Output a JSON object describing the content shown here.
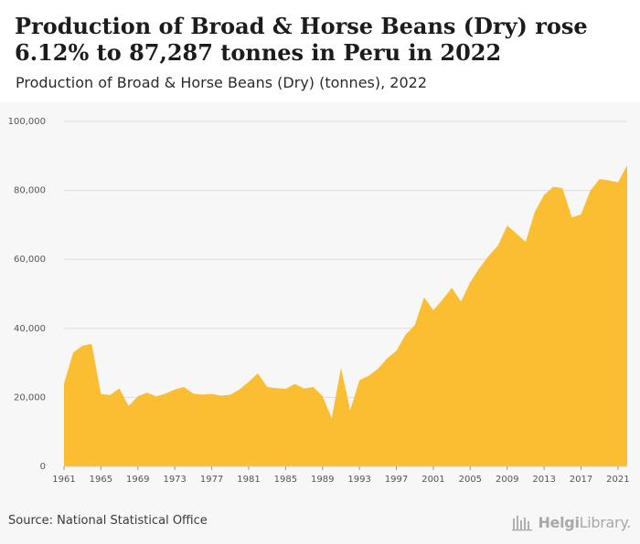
{
  "header": {
    "title": "Production of Broad & Horse Beans (Dry) rose 6.12% to 87,287 tonnes in Peru in 2022",
    "subtitle": "Production of Broad & Horse Beans (Dry) (tonnes), 2022"
  },
  "footer": {
    "source": "Source: National Statistical Office",
    "logo_text_a": "Helgi",
    "logo_text_b": "Library."
  },
  "colors": {
    "area_fill": "#fbbd31",
    "gridline": "#dddddd",
    "panel_bg": "#f7f7f7"
  },
  "chart_data": {
    "type": "area",
    "title": "Production of Broad & Horse Beans (Dry) (tonnes), 2022",
    "xlabel": "",
    "ylabel": "",
    "ylim": [
      0,
      100000
    ],
    "yticks": [
      0,
      20000,
      40000,
      60000,
      80000,
      100000
    ],
    "ytick_labels": [
      "0",
      "20,000",
      "40,000",
      "60,000",
      "80,000",
      "100,000"
    ],
    "xticks": [
      1961,
      1965,
      1969,
      1973,
      1977,
      1981,
      1985,
      1989,
      1993,
      1997,
      2001,
      2005,
      2009,
      2013,
      2017,
      2021
    ],
    "grid": true,
    "series": [
      {
        "x": [
          1961,
          1962,
          1963,
          1964,
          1965,
          1966,
          1967,
          1968,
          1969,
          1970,
          1971,
          1972,
          1973,
          1974,
          1975,
          1976,
          1977,
          1978,
          1979,
          1980,
          1981,
          1982,
          1983,
          1984,
          1985,
          1986,
          1987,
          1988,
          1989,
          1990,
          1991,
          1992,
          1993,
          1994,
          1995,
          1996,
          1997,
          1998,
          1999,
          2000,
          2001,
          2002,
          2003,
          2004,
          2005,
          2006,
          2007,
          2008,
          2009,
          2010,
          2011,
          2012,
          2013,
          2014,
          2015,
          2016,
          2017,
          2018,
          2019,
          2020,
          2021,
          2022
        ],
        "values": [
          24000,
          33000,
          35000,
          35500,
          21000,
          20700,
          22600,
          17500,
          20300,
          21400,
          20300,
          21100,
          22300,
          23000,
          21100,
          20800,
          21000,
          20500,
          20800,
          22300,
          24500,
          27000,
          23000,
          22700,
          22500,
          23900,
          22600,
          23000,
          20400,
          14000,
          28500,
          16300,
          25000,
          26300,
          28300,
          31300,
          33500,
          38200,
          41000,
          49000,
          45300,
          48300,
          51800,
          47800,
          53400,
          57500,
          61000,
          64000,
          69800,
          67500,
          65100,
          73800,
          78700,
          81100,
          80600,
          72200,
          73000,
          79900,
          83300,
          82900,
          82300,
          87287
        ]
      }
    ]
  }
}
